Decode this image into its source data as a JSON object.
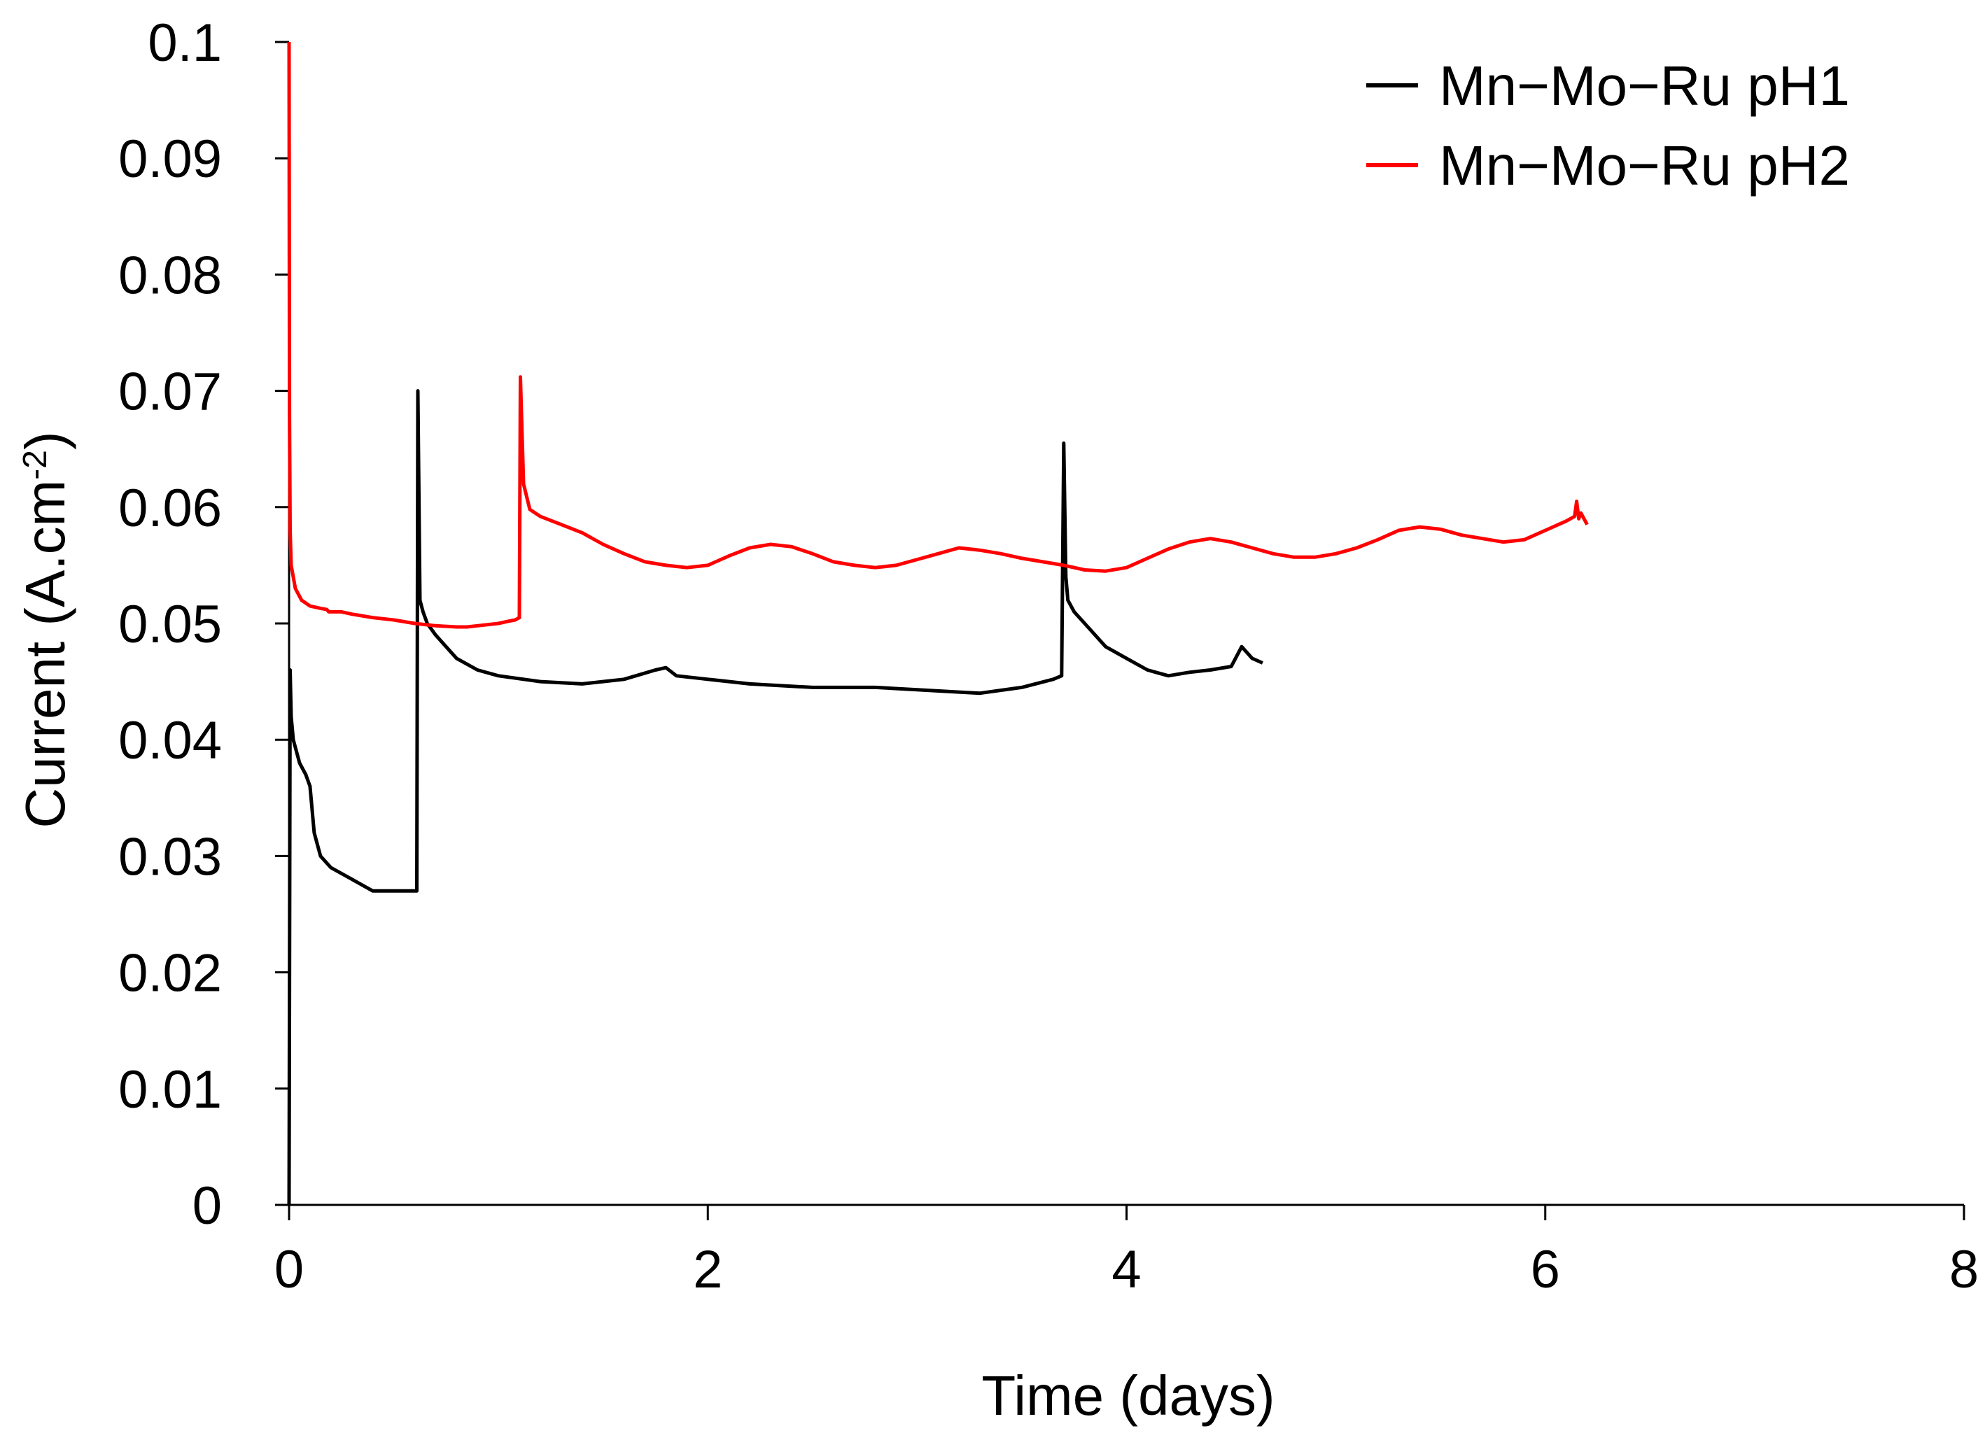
{
  "chart_data": {
    "type": "line",
    "title": "",
    "xlabel": "Time (days)",
    "ylabel": "Current (A.cm",
    "ylabel_superscript": "-2",
    "ylabel_suffix": ")",
    "xlim": [
      0,
      8
    ],
    "ylim": [
      0,
      0.1
    ],
    "x_ticks": [
      0,
      2,
      4,
      6,
      8
    ],
    "x_tick_labels": [
      "0",
      "2",
      "4",
      "6",
      "8"
    ],
    "y_ticks": [
      0,
      0.01,
      0.02,
      0.03,
      0.04,
      0.05,
      0.06,
      0.07,
      0.08,
      0.09,
      0.1
    ],
    "y_tick_labels": [
      "0",
      "0.01",
      "0.02",
      "0.03",
      "0.04",
      "0.05",
      "0.06",
      "0.07",
      "0.08",
      "0.09",
      "0.1"
    ],
    "grid": false,
    "legend_position": "top-right",
    "series": [
      {
        "name": "Mn−Mo−Ru pH1",
        "color": "#000000",
        "x": [
          0.0,
          0.005,
          0.01,
          0.02,
          0.05,
          0.08,
          0.1,
          0.12,
          0.15,
          0.2,
          0.3,
          0.4,
          0.5,
          0.6,
          0.61,
          0.615,
          0.625,
          0.64,
          0.66,
          0.7,
          0.8,
          0.9,
          1.0,
          1.2,
          1.4,
          1.6,
          1.75,
          1.8,
          1.85,
          2.0,
          2.2,
          2.5,
          2.8,
          3.0,
          3.2,
          3.3,
          3.5,
          3.65,
          3.69,
          3.7,
          3.71,
          3.72,
          3.75,
          3.8,
          3.9,
          4.0,
          4.1,
          4.2,
          4.3,
          4.4,
          4.5,
          4.55,
          4.6,
          4.65
        ],
        "values": [
          0.0,
          0.046,
          0.042,
          0.04,
          0.038,
          0.037,
          0.036,
          0.032,
          0.03,
          0.029,
          0.028,
          0.027,
          0.027,
          0.027,
          0.027,
          0.07,
          0.052,
          0.051,
          0.05,
          0.049,
          0.047,
          0.046,
          0.0455,
          0.045,
          0.0448,
          0.0452,
          0.046,
          0.0462,
          0.0455,
          0.0452,
          0.0448,
          0.0445,
          0.0445,
          0.0443,
          0.0441,
          0.044,
          0.0445,
          0.0452,
          0.0455,
          0.0655,
          0.054,
          0.052,
          0.051,
          0.05,
          0.048,
          0.047,
          0.046,
          0.0455,
          0.0458,
          0.046,
          0.0463,
          0.048,
          0.047,
          0.0466
        ]
      },
      {
        "name": "Mn−Mo−Ru pH2",
        "color": "#ff0000",
        "x": [
          0.0,
          0.002,
          0.005,
          0.01,
          0.03,
          0.06,
          0.1,
          0.15,
          0.18,
          0.19,
          0.25,
          0.3,
          0.4,
          0.5,
          0.6,
          0.7,
          0.8,
          0.85,
          0.9,
          1.0,
          1.05,
          1.08,
          1.1,
          1.105,
          1.12,
          1.15,
          1.2,
          1.3,
          1.4,
          1.5,
          1.6,
          1.7,
          1.8,
          1.9,
          2.0,
          2.1,
          2.2,
          2.3,
          2.4,
          2.5,
          2.6,
          2.7,
          2.8,
          2.9,
          3.0,
          3.1,
          3.2,
          3.3,
          3.4,
          3.5,
          3.6,
          3.7,
          3.8,
          3.9,
          4.0,
          4.1,
          4.2,
          4.3,
          4.4,
          4.5,
          4.6,
          4.7,
          4.8,
          4.9,
          5.0,
          5.1,
          5.2,
          5.3,
          5.4,
          5.5,
          5.6,
          5.7,
          5.8,
          5.9,
          6.0,
          6.1,
          6.14,
          6.15,
          6.16,
          6.17,
          6.2
        ],
        "values": [
          0.1,
          0.068,
          0.058,
          0.055,
          0.053,
          0.052,
          0.0515,
          0.0513,
          0.0512,
          0.051,
          0.051,
          0.0508,
          0.0505,
          0.0503,
          0.05,
          0.0498,
          0.0497,
          0.0497,
          0.0498,
          0.05,
          0.0502,
          0.0503,
          0.0505,
          0.0712,
          0.062,
          0.0598,
          0.0592,
          0.0585,
          0.0578,
          0.0568,
          0.056,
          0.0553,
          0.055,
          0.0548,
          0.055,
          0.0558,
          0.0565,
          0.0568,
          0.0566,
          0.056,
          0.0553,
          0.055,
          0.0548,
          0.055,
          0.0555,
          0.056,
          0.0565,
          0.0563,
          0.056,
          0.0556,
          0.0553,
          0.055,
          0.0546,
          0.0545,
          0.0548,
          0.0556,
          0.0564,
          0.057,
          0.0573,
          0.057,
          0.0565,
          0.056,
          0.0557,
          0.0557,
          0.056,
          0.0565,
          0.0572,
          0.058,
          0.0583,
          0.0581,
          0.0576,
          0.0573,
          0.057,
          0.0572,
          0.058,
          0.0588,
          0.0592,
          0.0605,
          0.059,
          0.0595,
          0.0585
        ]
      }
    ]
  }
}
